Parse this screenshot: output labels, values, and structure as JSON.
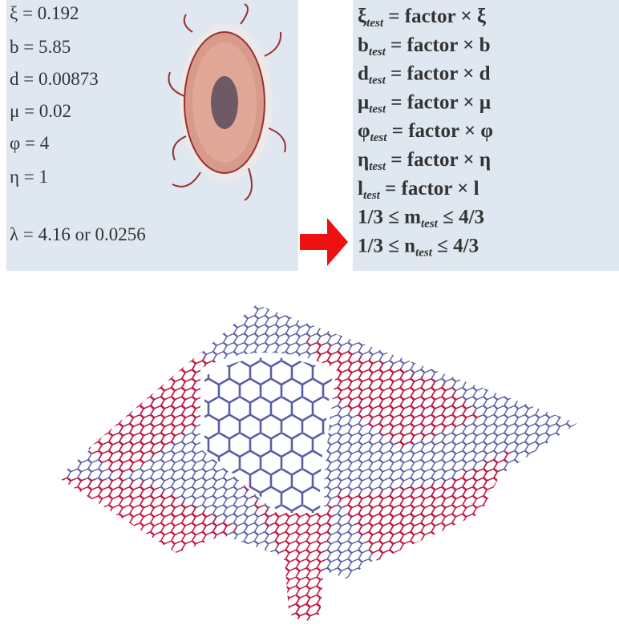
{
  "parameters": [
    "ξ = 0.192",
    "b = 5.85",
    "d = 0.00873",
    "μ = 0.02",
    "φ = 4",
    "η = 1",
    "λ = 4.16 or 0.0256"
  ],
  "test_rules": [
    {
      "lhs": "ξ",
      "sub": "test",
      "rhs": " = factor × ξ"
    },
    {
      "lhs": "b",
      "sub": "test",
      "rhs": " = factor × b"
    },
    {
      "lhs": "d",
      "sub": "test",
      "rhs": " = factor × d"
    },
    {
      "lhs": "μ",
      "sub": "test",
      "rhs": " = factor × μ"
    },
    {
      "lhs": "φ",
      "sub": "test",
      "rhs": " = factor × φ"
    },
    {
      "lhs": "η",
      "sub": "test",
      "rhs": " = factor × η"
    },
    {
      "lhs": "l",
      "sub": "test",
      "rhs": " = factor × l"
    },
    {
      "lhs": "1/3 ≤ m",
      "sub": "test",
      "rhs": " ≤ 4/3"
    },
    {
      "lhs": "1/3 ≤ n",
      "sub": "test",
      "rhs": " ≤ 4/3"
    }
  ]
}
